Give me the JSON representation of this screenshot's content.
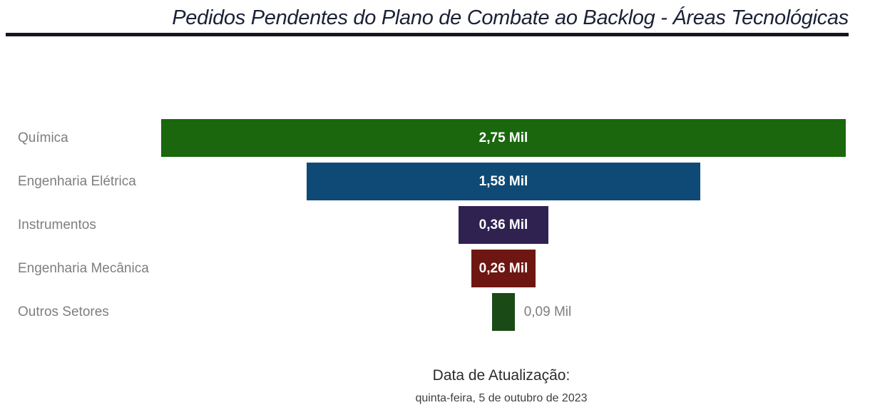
{
  "title": {
    "text": "Pedidos Pendentes do Plano de Combate ao Backlog - Áreas Tecnológicas"
  },
  "chart_data": {
    "type": "bar",
    "subtype": "funnel-horizontal-centered",
    "title": "Pedidos Pendentes do Plano de Combate ao Backlog - Áreas Tecnológicas",
    "categories": [
      "Química",
      "Engenharia Elétrica",
      "Instrumentos",
      "Engenharia Mecânica",
      "Outros Setores"
    ],
    "values": [
      2.75,
      1.58,
      0.36,
      0.26,
      0.09
    ],
    "value_labels": [
      "2,75 Mil",
      "1,58 Mil",
      "0,36 Mil",
      "0,26 Mil",
      "0,09 Mil"
    ],
    "unit": "Mil",
    "max_value": 2.75,
    "xlim": [
      0,
      2.75
    ],
    "bar_colors": [
      "#1a670e",
      "#0e4a75",
      "#2f2251",
      "#6e1712",
      "#1a4a16"
    ],
    "label_inside": [
      true,
      true,
      true,
      true,
      false
    ],
    "grid": "off",
    "legend": "none",
    "category_label_color": "#7e7e7e",
    "value_label_color_inside": "#ffffff",
    "value_label_color_outside": "#7e7e7e"
  },
  "footer": {
    "label": "Data de Atualização:",
    "date": "quinta-feira, 5 de outubro de 2023"
  },
  "colors": {
    "title": "#1b2036",
    "title_rule": "#15171f",
    "background": "#ffffff"
  }
}
